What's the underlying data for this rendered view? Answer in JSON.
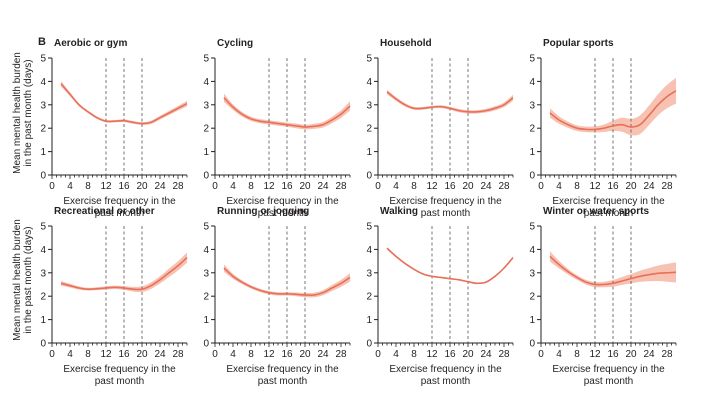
{
  "chart_data": {
    "type": "line",
    "panel_label": "B",
    "ylabel": "Mean mental health burden in the past month (days)",
    "ylabel_lines": [
      "Mean mental health burden",
      "in the past month (days)"
    ],
    "xlabel": "Exercise frequency in the past month",
    "xlabel_lines": [
      "Exercise frequency in the",
      "past month"
    ],
    "xlim": [
      0,
      30
    ],
    "ylim": [
      0,
      5
    ],
    "xticks": [
      0,
      4,
      8,
      12,
      16,
      20,
      24,
      28
    ],
    "yticks": [
      0,
      1,
      2,
      3,
      4,
      5
    ],
    "vlines": [
      12,
      16,
      20
    ],
    "colors": {
      "line": "#e8705a",
      "band": "#f6b7a5",
      "axis": "#231f20",
      "dash": "#555555"
    },
    "panels": [
      {
        "title": "Aerobic or gym",
        "x": [
          2,
          4,
          6,
          8,
          10,
          12,
          14,
          16,
          18,
          20,
          22,
          24,
          26,
          28,
          30
        ],
        "y": [
          3.9,
          3.45,
          3.0,
          2.7,
          2.45,
          2.3,
          2.3,
          2.32,
          2.25,
          2.2,
          2.25,
          2.45,
          2.65,
          2.85,
          3.05
        ],
        "band": [
          0.12,
          0.08,
          0.06,
          0.05,
          0.05,
          0.05,
          0.05,
          0.06,
          0.06,
          0.06,
          0.07,
          0.08,
          0.09,
          0.1,
          0.12
        ]
      },
      {
        "title": "Cycling",
        "x": [
          2,
          4,
          6,
          8,
          10,
          12,
          14,
          16,
          18,
          20,
          22,
          24,
          26,
          28,
          30
        ],
        "y": [
          3.3,
          2.9,
          2.6,
          2.4,
          2.3,
          2.25,
          2.2,
          2.15,
          2.1,
          2.05,
          2.08,
          2.15,
          2.35,
          2.6,
          2.95
        ],
        "band": [
          0.18,
          0.12,
          0.1,
          0.09,
          0.09,
          0.09,
          0.09,
          0.09,
          0.1,
          0.1,
          0.11,
          0.12,
          0.14,
          0.16,
          0.2
        ]
      },
      {
        "title": "Household",
        "x": [
          2,
          4,
          6,
          8,
          10,
          12,
          14,
          16,
          18,
          20,
          22,
          24,
          26,
          28,
          30
        ],
        "y": [
          3.55,
          3.25,
          3.0,
          2.85,
          2.85,
          2.9,
          2.92,
          2.85,
          2.75,
          2.7,
          2.7,
          2.75,
          2.85,
          3.0,
          3.3
        ],
        "band": [
          0.1,
          0.08,
          0.07,
          0.06,
          0.06,
          0.06,
          0.06,
          0.06,
          0.07,
          0.07,
          0.07,
          0.08,
          0.09,
          0.1,
          0.13
        ]
      },
      {
        "title": "Popular sports",
        "x": [
          2,
          4,
          6,
          8,
          10,
          12,
          14,
          16,
          18,
          20,
          22,
          24,
          26,
          28,
          30
        ],
        "y": [
          2.65,
          2.35,
          2.15,
          2.0,
          1.95,
          1.95,
          2.0,
          2.1,
          2.15,
          2.05,
          2.15,
          2.55,
          3.0,
          3.35,
          3.6
        ],
        "band": [
          0.2,
          0.16,
          0.13,
          0.12,
          0.12,
          0.13,
          0.16,
          0.22,
          0.3,
          0.35,
          0.4,
          0.42,
          0.45,
          0.5,
          0.55
        ]
      },
      {
        "title": "Recreational or other",
        "x": [
          2,
          4,
          6,
          8,
          10,
          12,
          14,
          16,
          18,
          20,
          22,
          24,
          26,
          28,
          30
        ],
        "y": [
          2.55,
          2.45,
          2.35,
          2.3,
          2.32,
          2.35,
          2.38,
          2.35,
          2.3,
          2.3,
          2.45,
          2.7,
          3.0,
          3.3,
          3.65
        ],
        "band": [
          0.1,
          0.08,
          0.07,
          0.06,
          0.06,
          0.07,
          0.07,
          0.08,
          0.1,
          0.12,
          0.14,
          0.16,
          0.18,
          0.2,
          0.22
        ]
      },
      {
        "title": "Running or jogging",
        "x": [
          2,
          4,
          6,
          8,
          10,
          12,
          14,
          16,
          18,
          20,
          22,
          24,
          26,
          28,
          30
        ],
        "y": [
          3.2,
          2.85,
          2.6,
          2.4,
          2.25,
          2.15,
          2.1,
          2.1,
          2.08,
          2.05,
          2.05,
          2.15,
          2.35,
          2.55,
          2.8
        ],
        "band": [
          0.16,
          0.11,
          0.08,
          0.07,
          0.07,
          0.07,
          0.07,
          0.07,
          0.08,
          0.09,
          0.1,
          0.11,
          0.13,
          0.15,
          0.18
        ]
      },
      {
        "title": "Walking",
        "x": [
          2,
          4,
          6,
          8,
          10,
          12,
          14,
          16,
          18,
          20,
          22,
          24,
          26,
          28,
          30
        ],
        "y": [
          4.05,
          3.7,
          3.4,
          3.15,
          2.95,
          2.85,
          2.8,
          2.75,
          2.7,
          2.62,
          2.55,
          2.6,
          2.85,
          3.2,
          3.65
        ],
        "band": [
          0.05,
          0.04,
          0.03,
          0.03,
          0.03,
          0.03,
          0.03,
          0.03,
          0.03,
          0.03,
          0.03,
          0.03,
          0.03,
          0.04,
          0.05
        ]
      },
      {
        "title": "Winter or water sports",
        "x": [
          2,
          4,
          6,
          8,
          10,
          12,
          14,
          16,
          18,
          20,
          22,
          24,
          26,
          28,
          30
        ],
        "y": [
          3.7,
          3.35,
          3.05,
          2.8,
          2.6,
          2.5,
          2.5,
          2.55,
          2.65,
          2.75,
          2.85,
          2.92,
          2.98,
          3.0,
          3.02
        ],
        "band": [
          0.22,
          0.16,
          0.12,
          0.1,
          0.1,
          0.11,
          0.12,
          0.14,
          0.17,
          0.2,
          0.24,
          0.28,
          0.33,
          0.38,
          0.43
        ]
      }
    ]
  }
}
